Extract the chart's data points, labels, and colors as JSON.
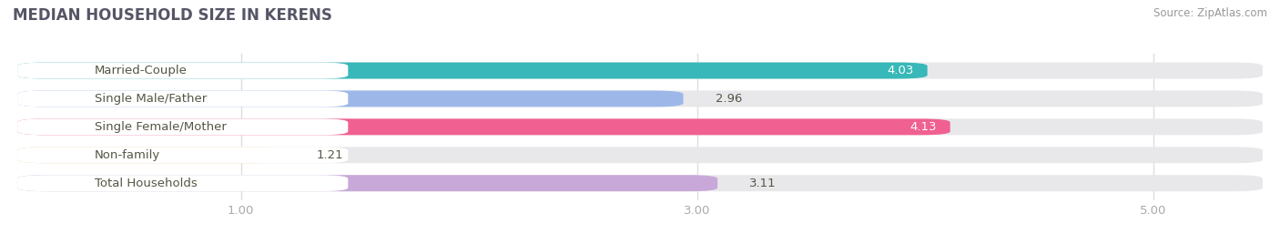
{
  "title": "MEDIAN HOUSEHOLD SIZE IN KERENS",
  "source": "Source: ZipAtlas.com",
  "categories": [
    "Married-Couple",
    "Single Male/Father",
    "Single Female/Mother",
    "Non-family",
    "Total Households"
  ],
  "values": [
    4.03,
    2.96,
    4.13,
    1.21,
    3.11
  ],
  "bar_colors": [
    "#38b8b8",
    "#9db8e8",
    "#f06090",
    "#f5cfa0",
    "#c8a8d8"
  ],
  "track_color": "#e8e8eb",
  "background_color": "#ffffff",
  "xlim_min": 0.0,
  "xlim_max": 5.5,
  "data_min": 1.0,
  "data_max": 5.0,
  "xticks": [
    1.0,
    3.0,
    5.0
  ],
  "xticklabels": [
    "1.00",
    "3.00",
    "5.00"
  ],
  "label_fontsize": 9.5,
  "value_fontsize": 9.5,
  "title_fontsize": 12,
  "source_fontsize": 8.5,
  "title_color": "#555566",
  "label_color": "#555544",
  "source_color": "#999999",
  "tick_color": "#aaaaaa"
}
